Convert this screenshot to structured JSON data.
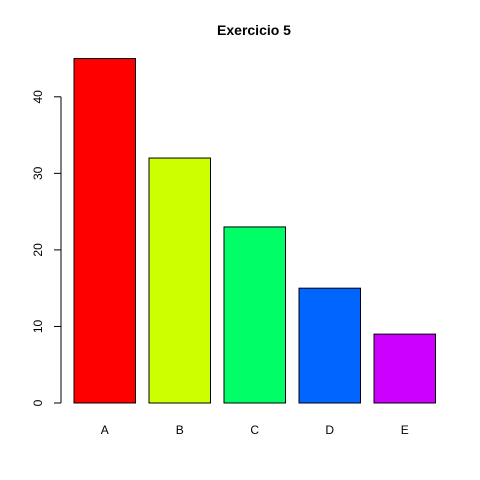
{
  "chart_data": {
    "type": "bar",
    "title": "Exercicio 5",
    "xlabel": "",
    "ylabel": "",
    "categories": [
      "A",
      "B",
      "C",
      "D",
      "E"
    ],
    "values": [
      45,
      32,
      23,
      15,
      9
    ],
    "colors": [
      "#FF0000",
      "#CCFF00",
      "#00FF66",
      "#0066FF",
      "#CC00FF"
    ],
    "yticks": [
      0,
      10,
      20,
      30,
      40
    ],
    "ylim": [
      0,
      45
    ],
    "grid": false,
    "legend": "none"
  }
}
